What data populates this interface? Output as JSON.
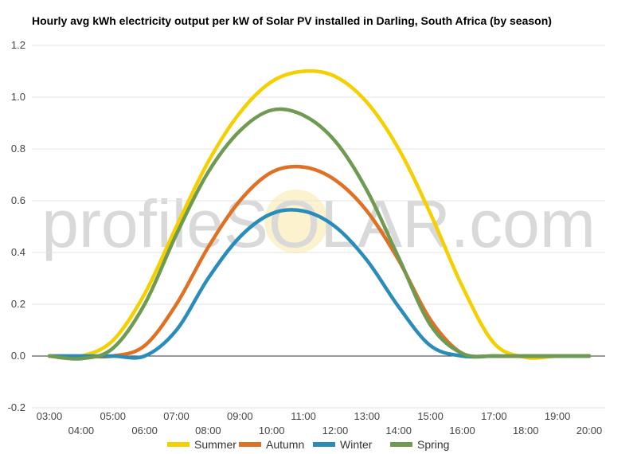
{
  "chart_data": {
    "type": "line",
    "title": "Hourly avg kWh electricity output per kW of Solar PV installed in Darling, South Africa (by season)",
    "watermark": "profileSOLAR.com",
    "x": [
      "03:00",
      "04:00",
      "05:00",
      "06:00",
      "07:00",
      "08:00",
      "09:00",
      "10:00",
      "11:00",
      "12:00",
      "13:00",
      "14:00",
      "15:00",
      "16:00",
      "17:00",
      "18:00",
      "19:00",
      "20:00"
    ],
    "ylim": [
      -0.2,
      1.2
    ],
    "yticks": [
      "-0.2",
      "0.0",
      "0.2",
      "0.4",
      "0.6",
      "0.8",
      "1.0",
      "1.2"
    ],
    "grid": true,
    "legend_position": "bottom",
    "series": [
      {
        "name": "Summer",
        "color": "#f5d000",
        "values": [
          0,
          0,
          0.06,
          0.24,
          0.5,
          0.75,
          0.94,
          1.06,
          1.1,
          1.08,
          0.98,
          0.8,
          0.55,
          0.27,
          0.05,
          -0.005,
          0,
          0
        ]
      },
      {
        "name": "Autumn",
        "color": "#e07024",
        "values": [
          0,
          0,
          0,
          0.04,
          0.2,
          0.42,
          0.6,
          0.71,
          0.73,
          0.68,
          0.56,
          0.37,
          0.14,
          0.01,
          0,
          0,
          0,
          0
        ]
      },
      {
        "name": "Winter",
        "color": "#2a8cb8",
        "values": [
          0,
          0,
          0,
          0,
          0.1,
          0.3,
          0.46,
          0.55,
          0.56,
          0.5,
          0.37,
          0.19,
          0.04,
          0,
          0,
          0,
          0,
          0
        ]
      },
      {
        "name": "Spring",
        "color": "#6e9a52",
        "values": [
          0,
          -0.01,
          0.03,
          0.2,
          0.47,
          0.71,
          0.87,
          0.95,
          0.93,
          0.83,
          0.64,
          0.38,
          0.12,
          0.01,
          0,
          0,
          0,
          0
        ]
      }
    ]
  }
}
